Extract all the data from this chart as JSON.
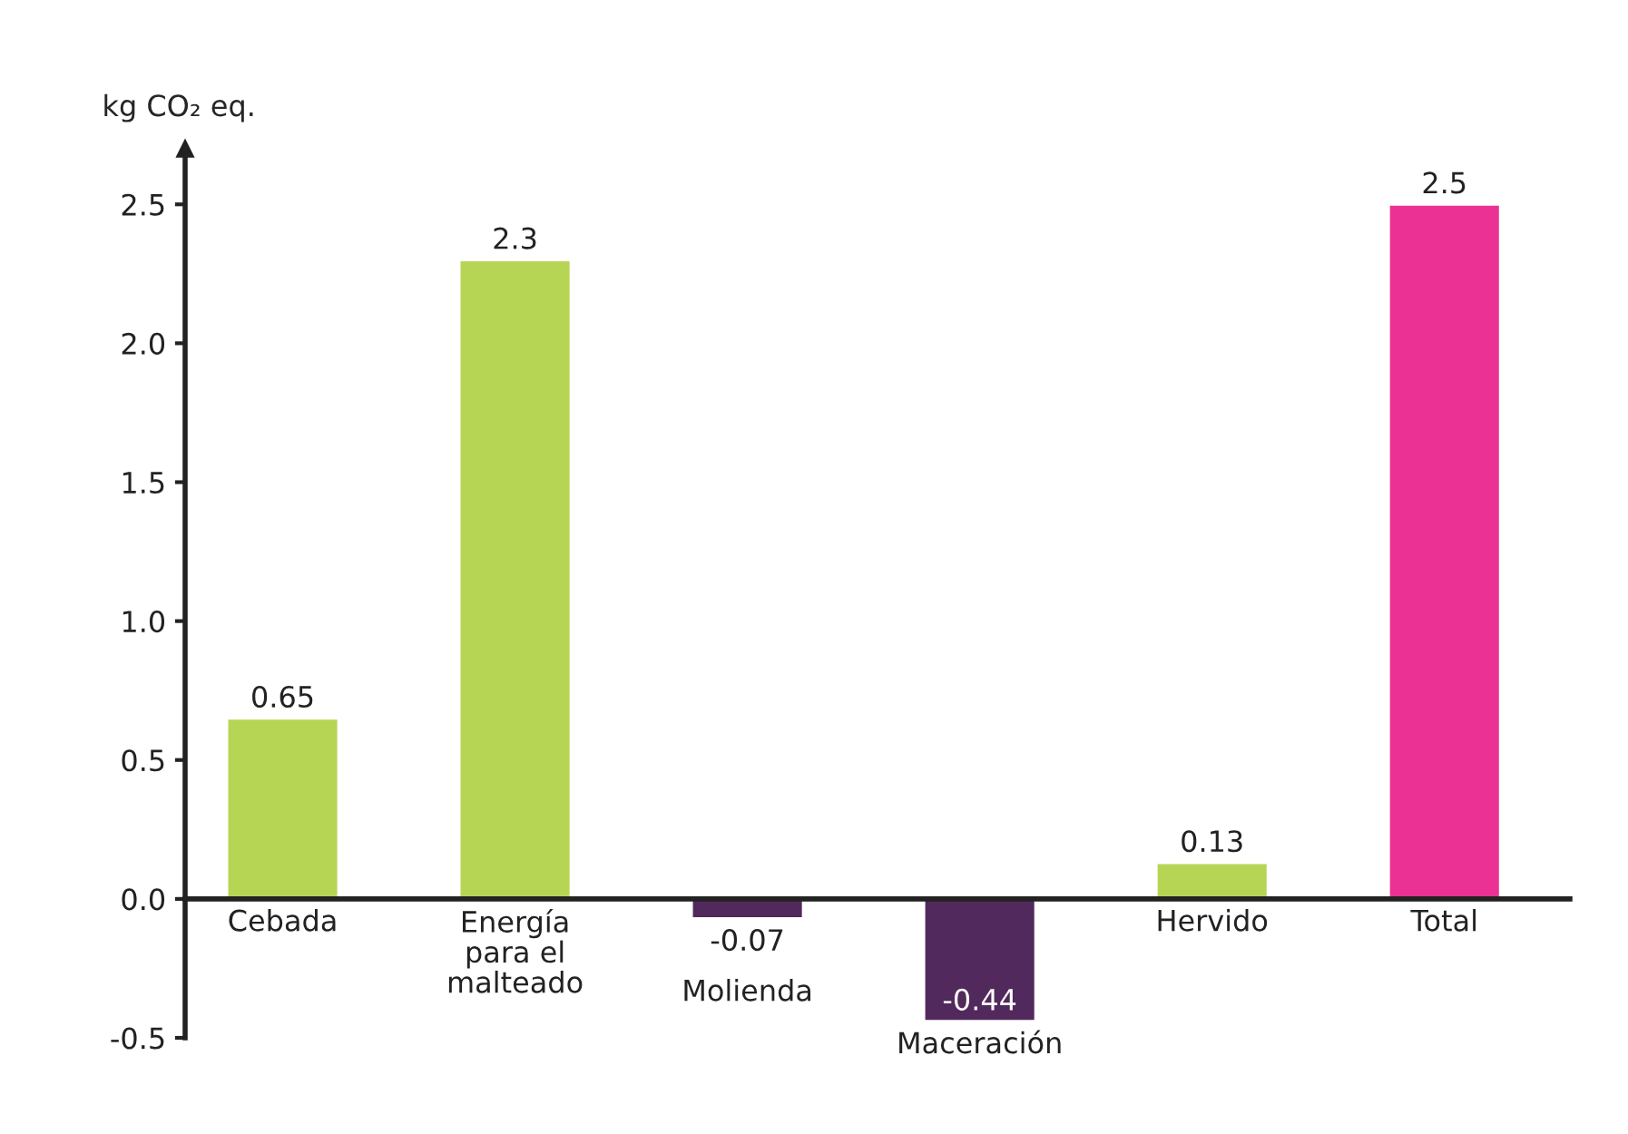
{
  "chart_data": {
    "type": "bar",
    "ylabel": "kg CO₂ eq.",
    "categories": [
      "Cebada",
      "Energía\npara el\nmalteado",
      "Molienda",
      "Maceración",
      "Hervido",
      "Total"
    ],
    "values": [
      0.65,
      2.3,
      -0.07,
      -0.44,
      0.13,
      2.5
    ],
    "colors": [
      "#b7d554",
      "#b7d554",
      "#52295c",
      "#52295c",
      "#b7d554",
      "#ec3194"
    ],
    "data_labels": true,
    "grid": false,
    "ylim": [
      -0.5,
      2.7
    ],
    "yticks": [
      {
        "value": -0.5,
        "label": "-0.5"
      },
      {
        "value": 0,
        "label": "0.0"
      },
      {
        "value": 0.5,
        "label": "0.5"
      },
      {
        "value": 1,
        "label": "1.0"
      },
      {
        "value": 1.5,
        "label": "1.5"
      },
      {
        "value": 2,
        "label": "2.0"
      },
      {
        "value": 2.5,
        "label": "2.5"
      }
    ]
  }
}
